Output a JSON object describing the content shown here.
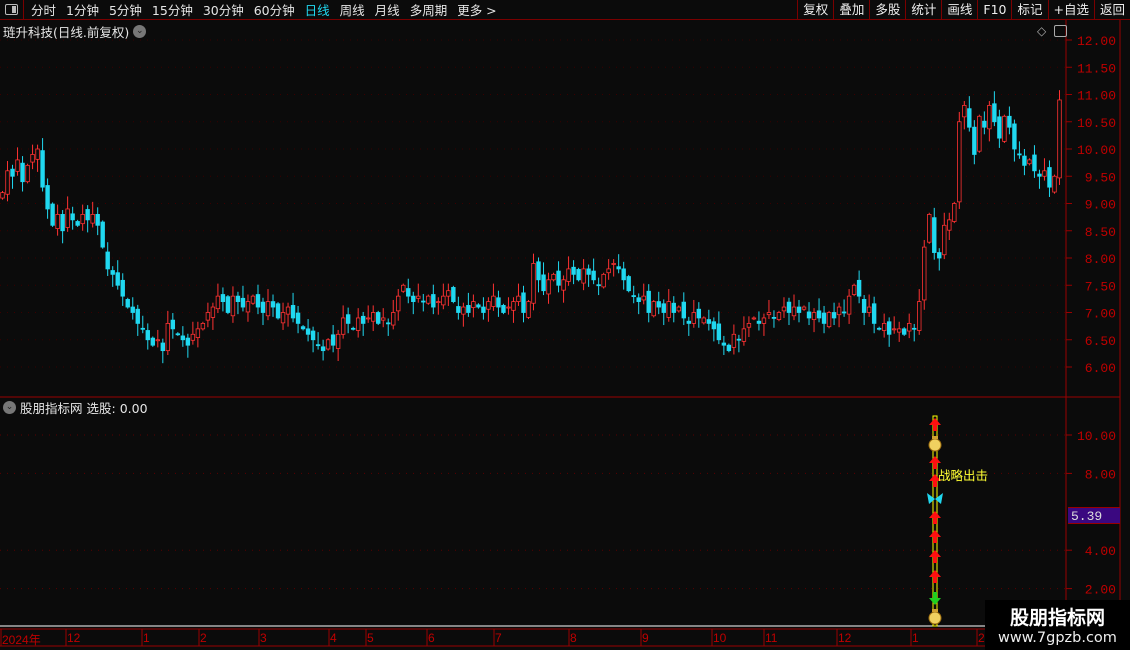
{
  "toolbar": {
    "periods": [
      "分时",
      "1分钟",
      "5分钟",
      "15分钟",
      "30分钟",
      "60分钟",
      "日线",
      "周线",
      "月线",
      "多周期",
      "更多 >"
    ],
    "active_period": "日线",
    "right_buttons": [
      "复权",
      "叠加",
      "多股",
      "统计",
      "画线",
      "F10",
      "标记",
      "+自选",
      "返回"
    ]
  },
  "main_chart": {
    "title": "琏升科技(日线.前复权)",
    "y_ticks": [
      "12.00",
      "11.50",
      "11.00",
      "10.50",
      "10.00",
      "9.50",
      "9.00",
      "8.50",
      "8.00",
      "7.50",
      "7.00",
      "6.50",
      "6.00"
    ],
    "colors": {
      "up": "#ff3232",
      "down": "#20d8f0",
      "axis": "#c00000"
    },
    "closes": [
      9.2,
      9.6,
      9.5,
      9.8,
      9.4,
      9.7,
      9.9,
      10.0,
      9.3,
      8.9,
      8.6,
      8.8,
      8.5,
      8.9,
      8.7,
      8.6,
      8.8,
      8.7,
      8.8,
      8.6,
      8.2,
      7.8,
      7.7,
      7.5,
      7.3,
      7.1,
      7.0,
      6.8,
      6.7,
      6.5,
      6.4,
      6.5,
      6.3,
      6.8,
      6.7,
      6.6,
      6.5,
      6.4,
      6.6,
      6.7,
      6.8,
      7.0,
      7.1,
      7.3,
      7.2,
      7.0,
      7.3,
      7.2,
      7.1,
      7.2,
      7.3,
      7.1,
      7.0,
      7.2,
      7.1,
      6.9,
      7.0,
      7.1,
      6.9,
      6.8,
      6.7,
      6.6,
      6.5,
      6.4,
      6.3,
      6.5,
      6.4,
      6.6,
      6.9,
      6.8,
      6.7,
      6.9,
      6.8,
      6.9,
      7.0,
      6.8,
      6.9,
      6.8,
      7.0,
      7.3,
      7.5,
      7.3,
      7.2,
      7.3,
      7.2,
      7.3,
      7.1,
      7.2,
      7.3,
      7.4,
      7.2,
      7.0,
      7.1,
      7.0,
      7.2,
      7.1,
      7.0,
      7.2,
      7.3,
      7.1,
      7.0,
      7.1,
      7.2,
      7.3,
      7.0,
      7.2,
      7.9,
      7.6,
      7.4,
      7.6,
      7.7,
      7.5,
      7.6,
      7.8,
      7.7,
      7.6,
      7.8,
      7.7,
      7.6,
      7.5,
      7.7,
      7.8,
      7.9,
      7.8,
      7.6,
      7.4,
      7.3,
      7.2,
      7.3,
      7.0,
      7.2,
      7.1,
      7.0,
      7.2,
      7.0,
      7.1,
      6.9,
      6.8,
      7.0,
      6.9,
      6.9,
      6.8,
      6.7,
      6.5,
      6.4,
      6.3,
      6.6,
      6.5,
      6.7,
      6.8,
      6.9,
      6.8,
      6.9,
      7.0,
      6.9,
      7.0,
      7.1,
      7.0,
      7.1,
      7.0,
      7.1,
      6.9,
      7.0,
      6.9,
      6.8,
      7.0,
      6.9,
      7.1,
      7.0,
      7.3,
      7.5,
      7.3,
      7.0,
      7.1,
      6.8,
      6.7,
      6.8,
      6.6,
      6.7,
      6.7,
      6.6,
      6.8,
      6.7,
      7.2,
      8.2,
      8.8,
      8.1,
      8.0,
      8.6,
      8.7,
      9.0,
      10.5,
      10.8,
      10.4,
      9.9,
      10.6,
      10.4,
      10.8,
      10.5,
      10.2,
      10.6,
      10.4,
      10.0,
      9.9,
      9.7,
      9.8,
      9.6,
      9.5,
      9.6,
      9.3,
      9.5,
      10.9
    ]
  },
  "indicator": {
    "name": "股朋指标网",
    "label": "选股: 0.00",
    "current_value": "5.39",
    "signal_text": "战略出击",
    "y_ticks": [
      "10.00",
      "8.00",
      "4.00",
      "2.00"
    ],
    "markers": [
      "arrow-up",
      "money-bag",
      "arrow-up",
      "arrow-up",
      "butterfly",
      "arrow-up",
      "arrow-up",
      "arrow-up",
      "arrow-up",
      "arrow-down",
      "money-bag"
    ]
  },
  "x_axis": [
    "2024年",
    "12",
    "1",
    "2",
    "3",
    "4",
    "5",
    "6",
    "7",
    "8",
    "9",
    "10",
    "11",
    "12",
    "1",
    "2"
  ],
  "watermark": {
    "name": "股朋指标网",
    "url": "www.7gpzb.com"
  }
}
